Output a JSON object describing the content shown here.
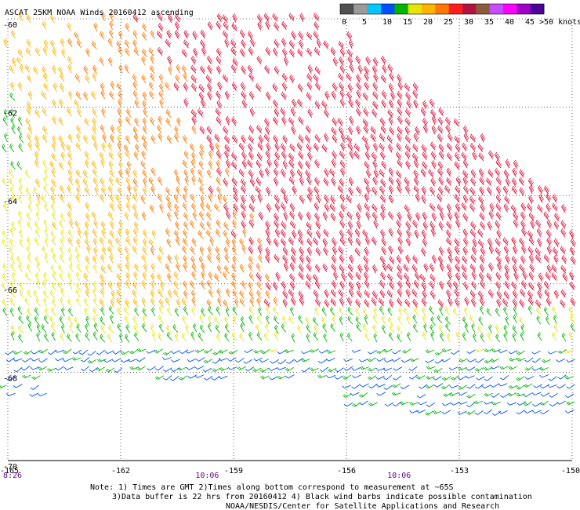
{
  "title": "ASCAT 25KM NOAA Winds 20160412 ascending",
  "legend": {
    "unit_label": ">50 knots",
    "tick_labels": [
      "0",
      "5",
      "10",
      "15",
      "20",
      "25",
      "30",
      "35",
      "40",
      "45"
    ],
    "colors": [
      "#505050",
      "#9a9a9a",
      "#00c8ff",
      "#0050ff",
      "#00b400",
      "#e6e600",
      "#ffb400",
      "#ff7800",
      "#ff1e1e",
      "#b4143c",
      "#8c5a3c",
      "#c84bff",
      "#ff00ff",
      "#a000c8",
      "#4b0096"
    ]
  },
  "chart_data": {
    "type": "wind-barb-map",
    "xlim": [
      -165,
      -150
    ],
    "ylim": [
      -70,
      -60
    ],
    "x_ticks": [
      -165,
      -162,
      -159,
      -156,
      -153,
      -150
    ],
    "y_ticks": [
      -60,
      -62,
      -64,
      -66,
      -68,
      -70
    ],
    "x_tick_labels": [
      "-165",
      "-162",
      "-159",
      "-156",
      "-153",
      "-150"
    ],
    "y_tick_labels": [
      "-60",
      "-62",
      "-64",
      "-66",
      "-68",
      "-70"
    ],
    "time_labels": [
      {
        "text": "8:26",
        "lon": -165
      },
      {
        "text": "10:06",
        "lon": -159.7
      },
      {
        "text": "10:06",
        "lon": -154.6
      }
    ],
    "speed_bins_knots": [
      0,
      5,
      10,
      15,
      20,
      25,
      30,
      35,
      40,
      45,
      50
    ],
    "grid": true
  },
  "notes": [
    "Note: 1) Times are GMT 2)Times along bottom correspond to measurement at ~65S",
    "3)Data buffer is 22 hrs from 20160412 4) Black wind barbs indicate possible contamination",
    "NOAA/NESDIS/Center for Satellite Applications and Research"
  ]
}
